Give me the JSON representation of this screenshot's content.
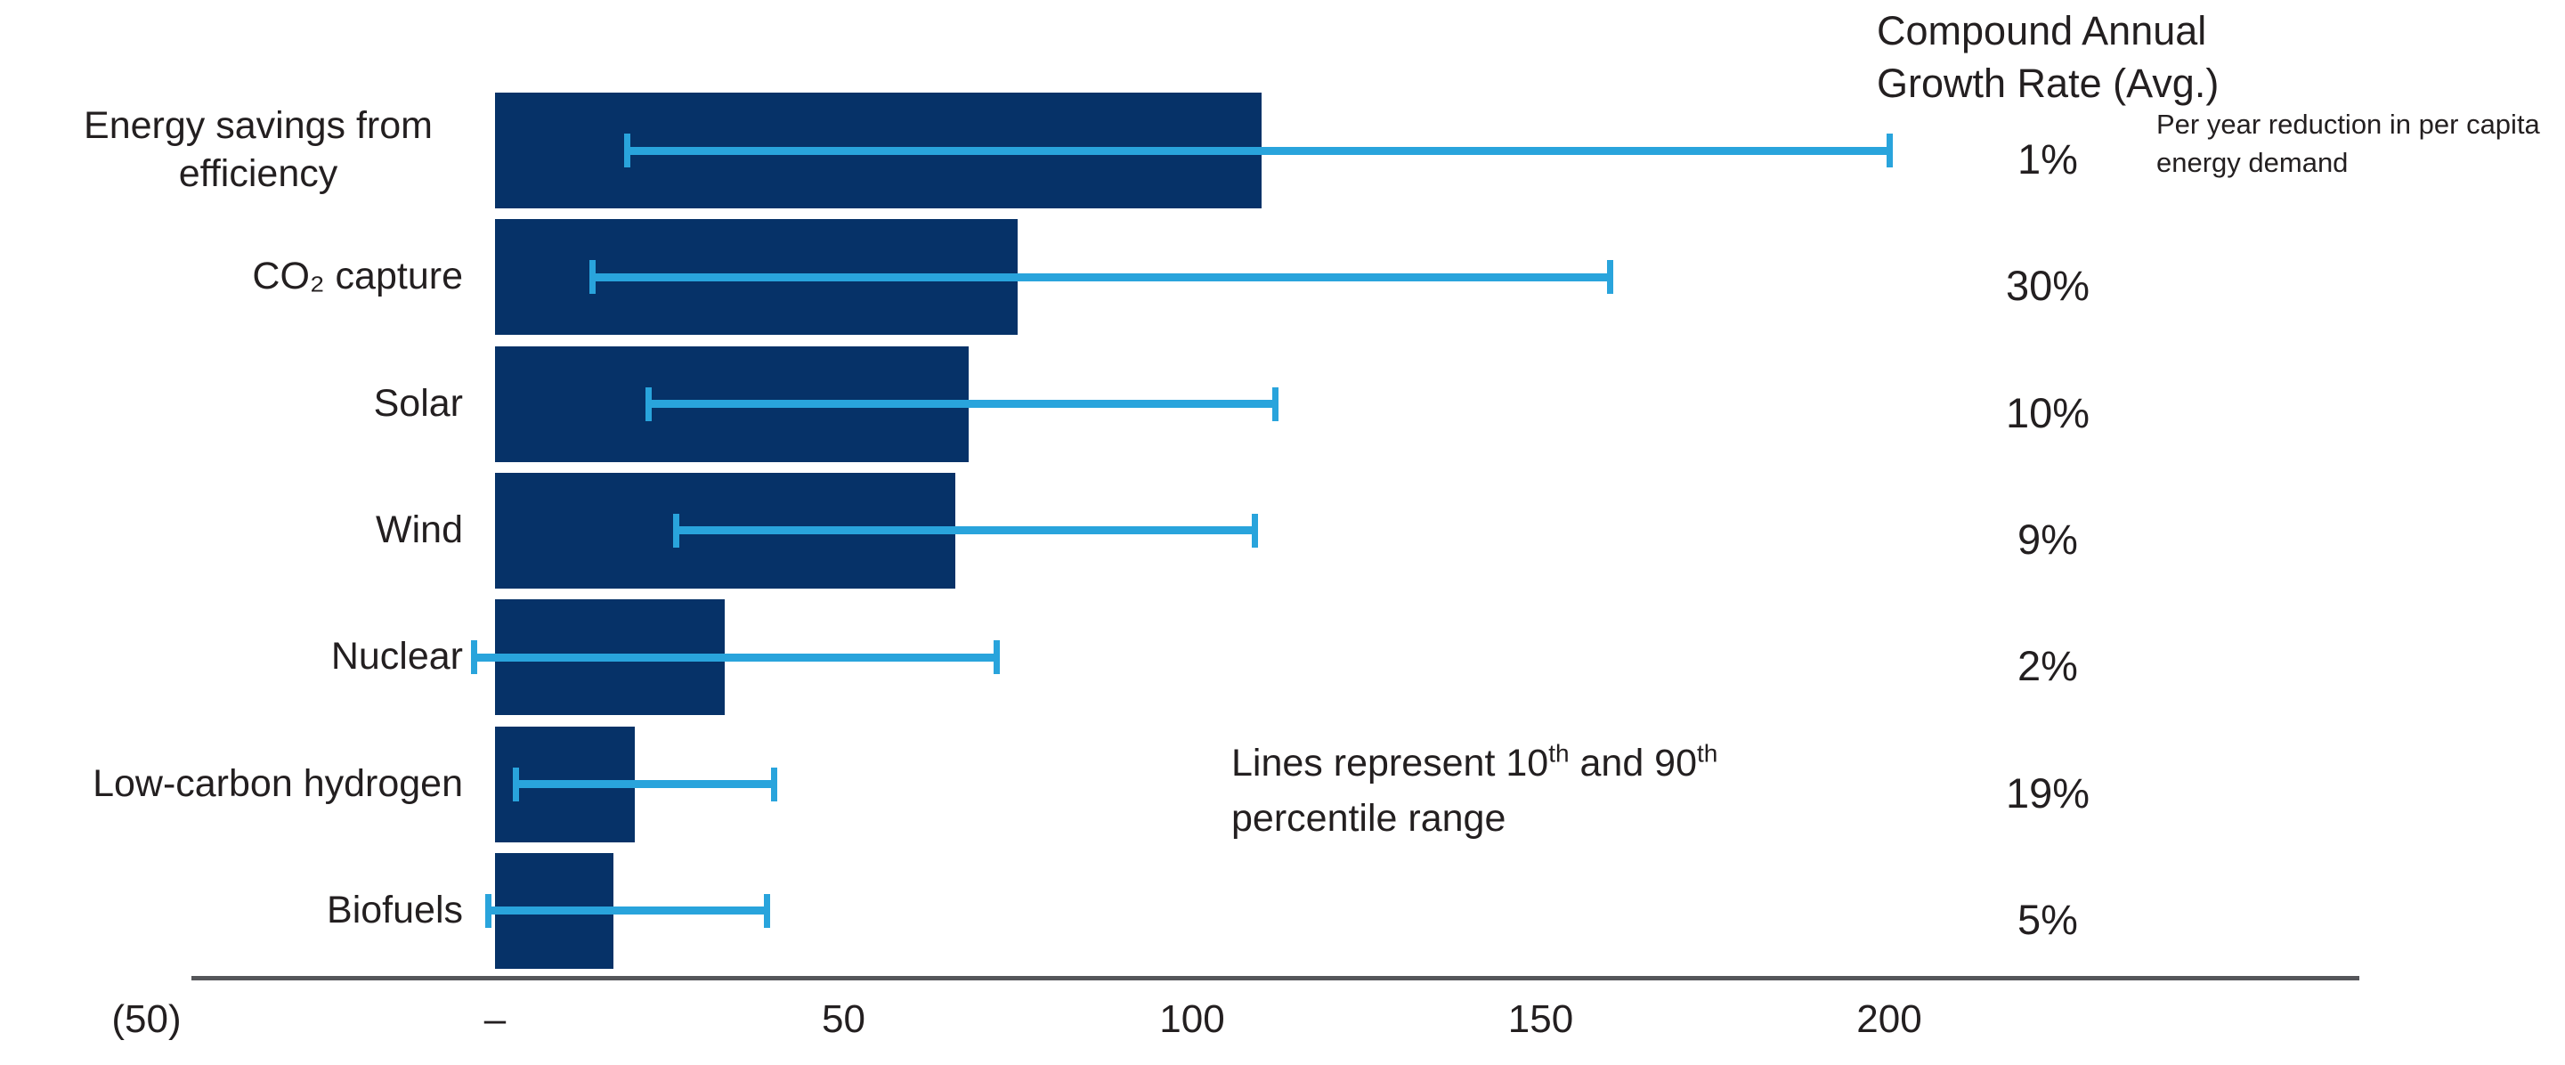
{
  "chart_data": {
    "type": "bar",
    "orientation": "horizontal",
    "title": "",
    "xlabel": "",
    "ylabel": "",
    "xlim": [
      -50,
      270
    ],
    "grid": false,
    "x_axis_ticks": [
      {
        "value": -50,
        "label": "(50)"
      },
      {
        "value": 0,
        "label": "–"
      },
      {
        "value": 50,
        "label": "50"
      },
      {
        "value": 100,
        "label": "100"
      },
      {
        "value": 150,
        "label": "150"
      },
      {
        "value": 200,
        "label": "200"
      }
    ],
    "categories": [
      "Energy savings from efficiency",
      "CO₂ capture",
      "Solar",
      "Wind",
      "Nuclear",
      "Low-carbon hydrogen",
      "Biofuels"
    ],
    "series": [
      {
        "name": "Average",
        "values": [
          110,
          75,
          68,
          66,
          33,
          20,
          17
        ]
      }
    ],
    "percentile_10th": [
      19,
      14,
      22,
      26,
      -3,
      3,
      -1
    ],
    "percentile_90th": [
      200,
      160,
      112,
      109,
      72,
      40,
      39
    ],
    "cagr_values": [
      "1%",
      "30%",
      "10%",
      "9%",
      "2%",
      "19%",
      "5%"
    ],
    "legend": "Lines represent 10th and 90th percentile range"
  },
  "annotations": {
    "cagr_header": "Compound Annual Growth Rate (Avg.)",
    "efficiency_note": "Per year reduction in per capita energy demand",
    "percentile_note": {
      "p1": "Lines represent 10",
      "s1": "th",
      "p2": " and 90",
      "s2": "th",
      "p3": " percentile range"
    }
  },
  "colors": {
    "bar": "#063268",
    "whisker": "#29a4dc",
    "axis": "#55565a",
    "text": "#231f20"
  }
}
